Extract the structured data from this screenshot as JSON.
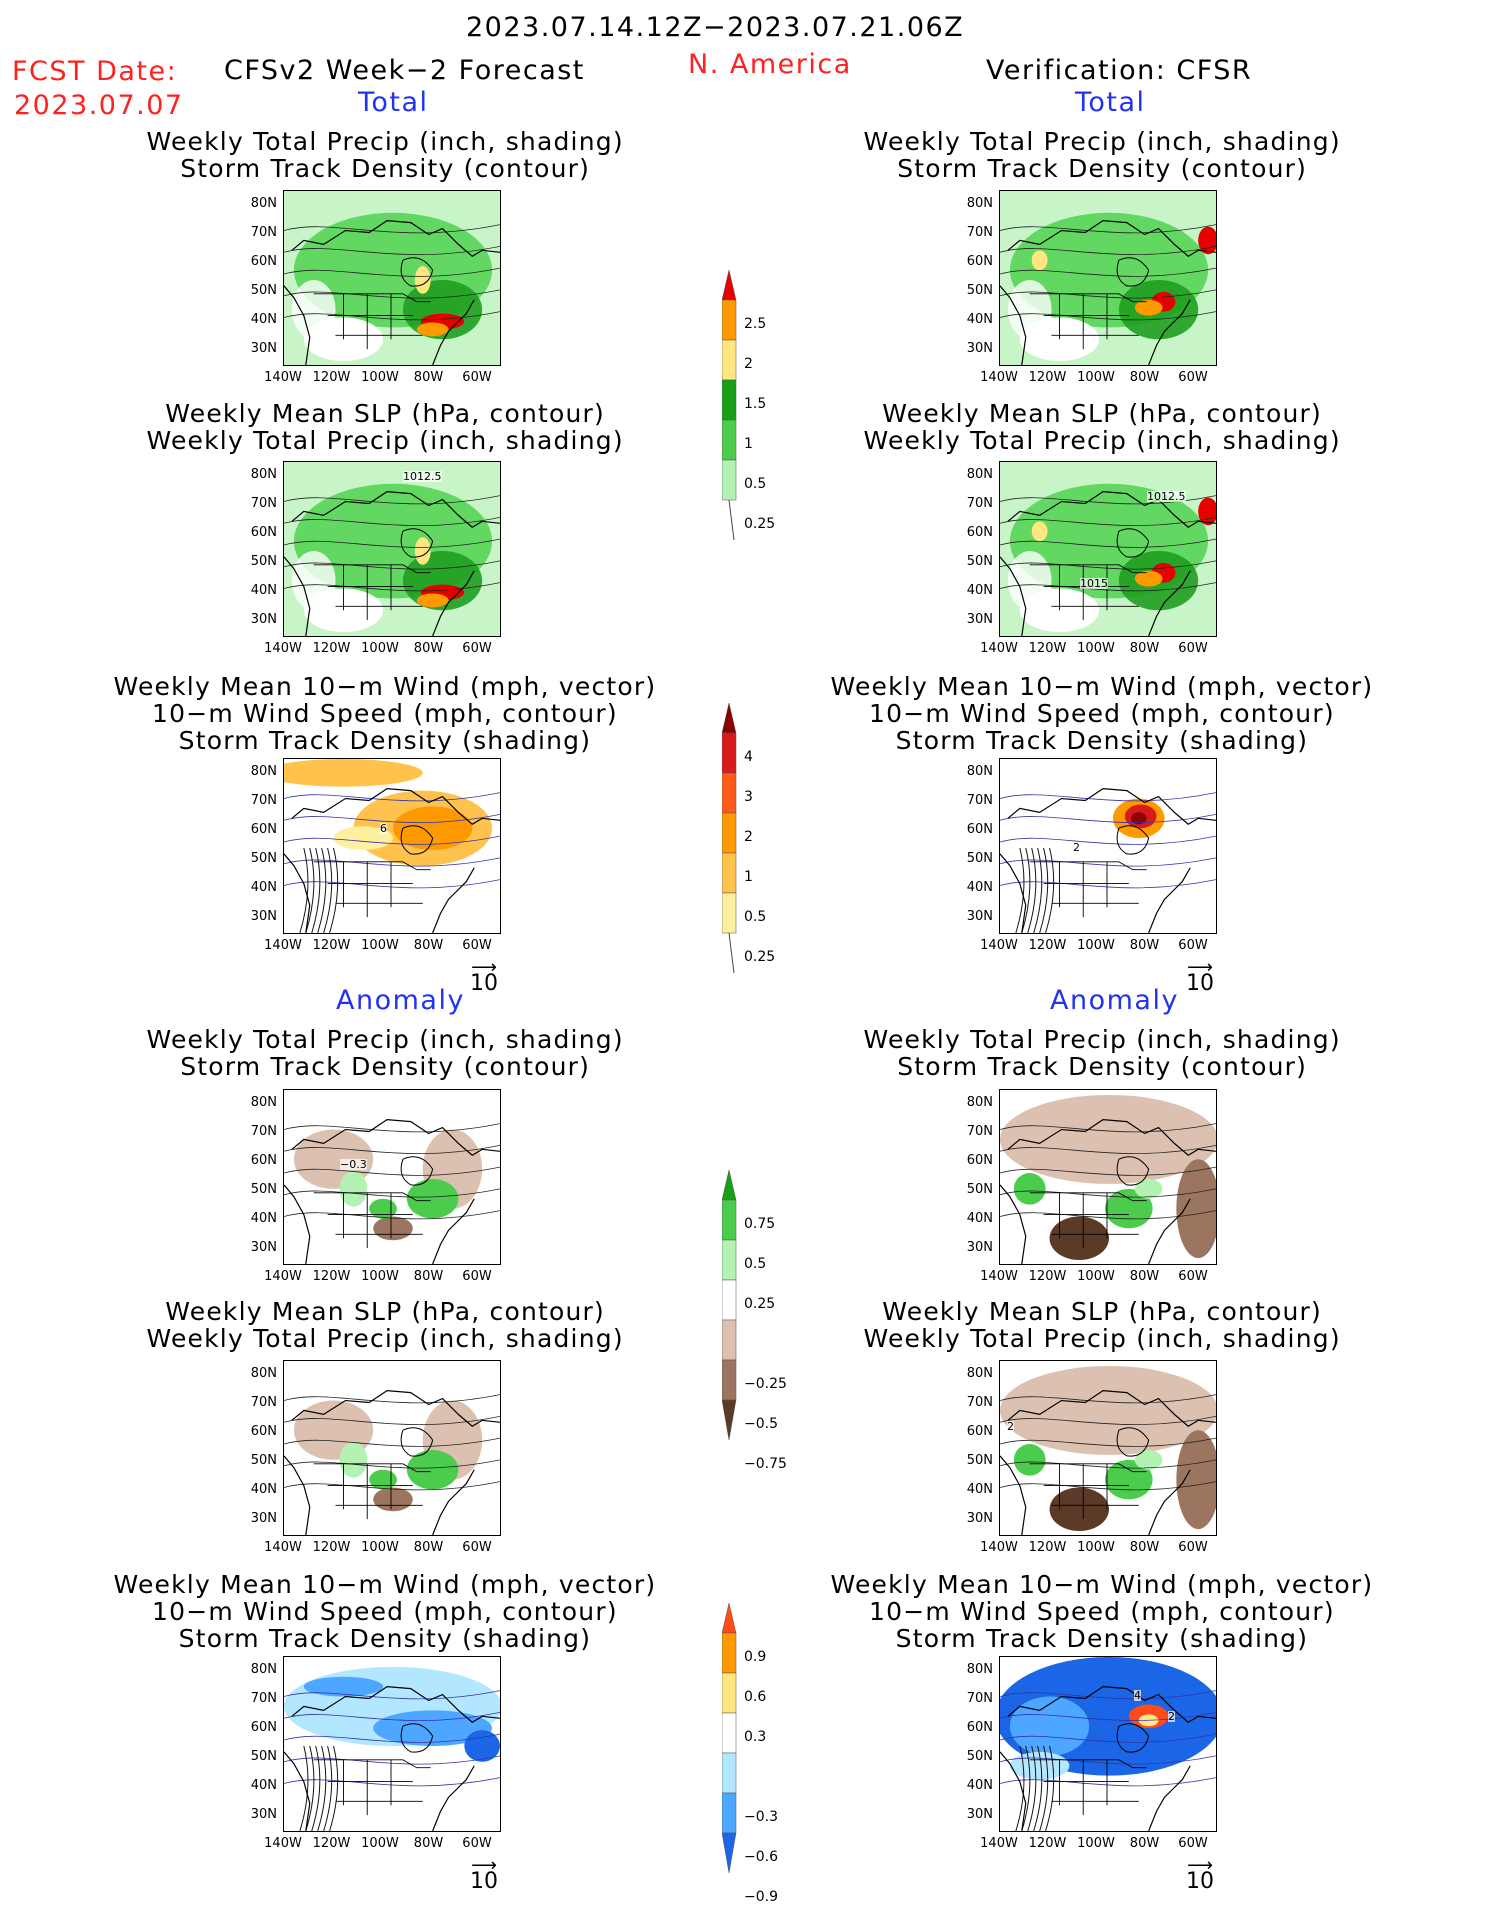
{
  "header": {
    "date_range": "2023.07.14.12Z−2023.07.21.06Z",
    "fcst_label": "FCST Date:",
    "fcst_date": "2023.07.07",
    "left_model": "CFSv2 Week−2 Forecast",
    "region": "N. America",
    "right_model": "Verification: CFSR"
  },
  "sections": {
    "total": "Total",
    "anomaly": "Anomaly"
  },
  "panel_titles": {
    "precip_storm": [
      "Weekly Total Precip (inch, shading)",
      "Storm Track Density (contour)"
    ],
    "slp_precip": [
      "Weekly Mean SLP (hPa, contour)",
      "Weekly Total Precip (inch, shading)"
    ],
    "wind_storm": [
      "Weekly Mean 10−m Wind (mph, vector)",
      "10−m Wind Speed (mph, contour)",
      "Storm Track Density (shading)"
    ]
  },
  "axes": {
    "lat": [
      "80N",
      "70N",
      "60N",
      "50N",
      "40N",
      "30N"
    ],
    "lon": [
      "140W",
      "120W",
      "100W",
      "80W",
      "60W"
    ]
  },
  "map_labels": {
    "fc_slp_contour": "1012.5",
    "ob_slp_contour": "1012.5",
    "ob_slp_contour2": "1015",
    "fc_wind_contour": "6",
    "ob_wind_contour": "2",
    "fc_anom_contour": "−0.3",
    "ob_anom_wind_contour_a": "4",
    "ob_anom_wind_contour_b": "2",
    "ob_anom_slp_contour": "2"
  },
  "vector_ref": "10",
  "colorbars": {
    "precip_total": {
      "labels": [
        "2.5",
        "2",
        "1.5",
        "1",
        "0.5",
        "0.25"
      ],
      "colors": [
        "#e60000",
        "#ff9900",
        "#ffe680",
        "#1a9e1a",
        "#4ccc4c",
        "#b3f2b3"
      ]
    },
    "storm_total": {
      "labels": [
        "4",
        "3",
        "2",
        "1",
        "0.5",
        "0.25"
      ],
      "colors": [
        "#8b0000",
        "#d81a1a",
        "#ff5a1a",
        "#ff9900",
        "#ffc24d",
        "#fff0a0"
      ]
    },
    "precip_anom": {
      "labels": [
        "0.75",
        "0.5",
        "0.25",
        "−0.25",
        "−0.5",
        "−0.75"
      ],
      "colors": [
        "#1a9e1a",
        "#4ccc4c",
        "#b3f2b3",
        "#ffffff",
        "#dcc0b0",
        "#9c7560",
        "#5c3a28"
      ]
    },
    "storm_anom": {
      "labels": [
        "0.9",
        "0.6",
        "0.3",
        "−0.3",
        "−0.6",
        "−0.9"
      ],
      "colors": [
        "#ff4a1a",
        "#ff9900",
        "#ffe680",
        "#ffffff",
        "#b3e6ff",
        "#4da6ff",
        "#1a66e6"
      ]
    }
  }
}
